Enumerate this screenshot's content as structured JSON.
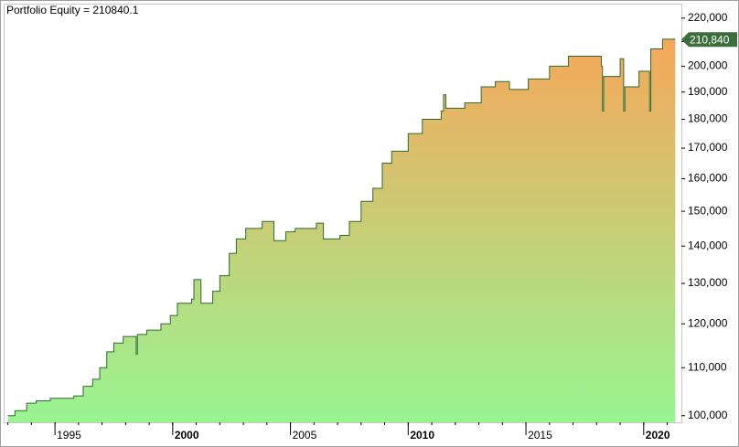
{
  "chart_data": {
    "type": "step-area",
    "title": "Portfolio Equity = 210840.1",
    "x": [
      1993.0,
      1993.3,
      1993.8,
      1994.2,
      1994.8,
      1995.8,
      1996.2,
      1996.6,
      1996.9,
      1997.2,
      1997.5,
      1997.9,
      1998.45,
      1998.5,
      1998.9,
      1999.5,
      1999.9,
      2000.2,
      2000.8,
      2000.9,
      2001.2,
      2001.7,
      2002.0,
      2002.4,
      2002.7,
      2003.1,
      2003.8,
      2004.3,
      2004.8,
      2005.2,
      2006.1,
      2006.4,
      2007.1,
      2007.5,
      2008.0,
      2008.5,
      2008.9,
      2009.3,
      2010.0,
      2010.6,
      2011.4,
      2011.5,
      2011.6,
      2012.4,
      2013.1,
      2013.7,
      2014.3,
      2015.1,
      2016.0,
      2016.8,
      2018.2,
      2018.25,
      2018.3,
      2019.0,
      2019.15,
      2019.2,
      2019.8,
      2020.25,
      2020.3,
      2020.8,
      2021.3
    ],
    "values": [
      100000,
      101000,
      102500,
      103000,
      103500,
      104000,
      106000,
      107500,
      110000,
      113500,
      115500,
      117000,
      113000,
      117500,
      118500,
      120000,
      122000,
      125000,
      126000,
      131000,
      125000,
      128000,
      132000,
      138000,
      142000,
      145000,
      147000,
      141500,
      144000,
      145000,
      146500,
      142000,
      143000,
      147000,
      153000,
      157000,
      165000,
      169000,
      175000,
      180000,
      183000,
      189000,
      184000,
      186000,
      192000,
      194000,
      191000,
      195000,
      200000,
      204000,
      200000,
      183000,
      196000,
      203000,
      183000,
      192000,
      198000,
      183000,
      207000,
      211000,
      210840
    ],
    "line_color": "#2e6b2e",
    "gradient": [
      "#f6a75a",
      "#98f592"
    ],
    "current_value": {
      "value": 210840,
      "label": "210,840"
    },
    "current_color": "#3b6e3b",
    "log_scale": true,
    "xlim": [
      1992.86,
      2021.6
    ],
    "ylim": [
      98700,
      226000
    ],
    "xticks": [
      1995,
      2000,
      2005,
      2010,
      2015,
      2020
    ],
    "yticks": [
      {
        "value": 100000,
        "label": "100,000"
      },
      {
        "value": 110000,
        "label": "110,000"
      },
      {
        "value": 120000,
        "label": "120,000"
      },
      {
        "value": 130000,
        "label": "130,000"
      },
      {
        "value": 140000,
        "label": "140,000"
      },
      {
        "value": 150000,
        "label": "150,000"
      },
      {
        "value": 160000,
        "label": "160,000"
      },
      {
        "value": 170000,
        "label": "170,000"
      },
      {
        "value": 180000,
        "label": "180,000"
      },
      {
        "value": 190000,
        "label": "190,000"
      },
      {
        "value": 200000,
        "label": "200,000"
      },
      {
        "value": 210000,
        "label": "210,000"
      },
      {
        "value": 220000,
        "label": "220,000"
      }
    ]
  }
}
